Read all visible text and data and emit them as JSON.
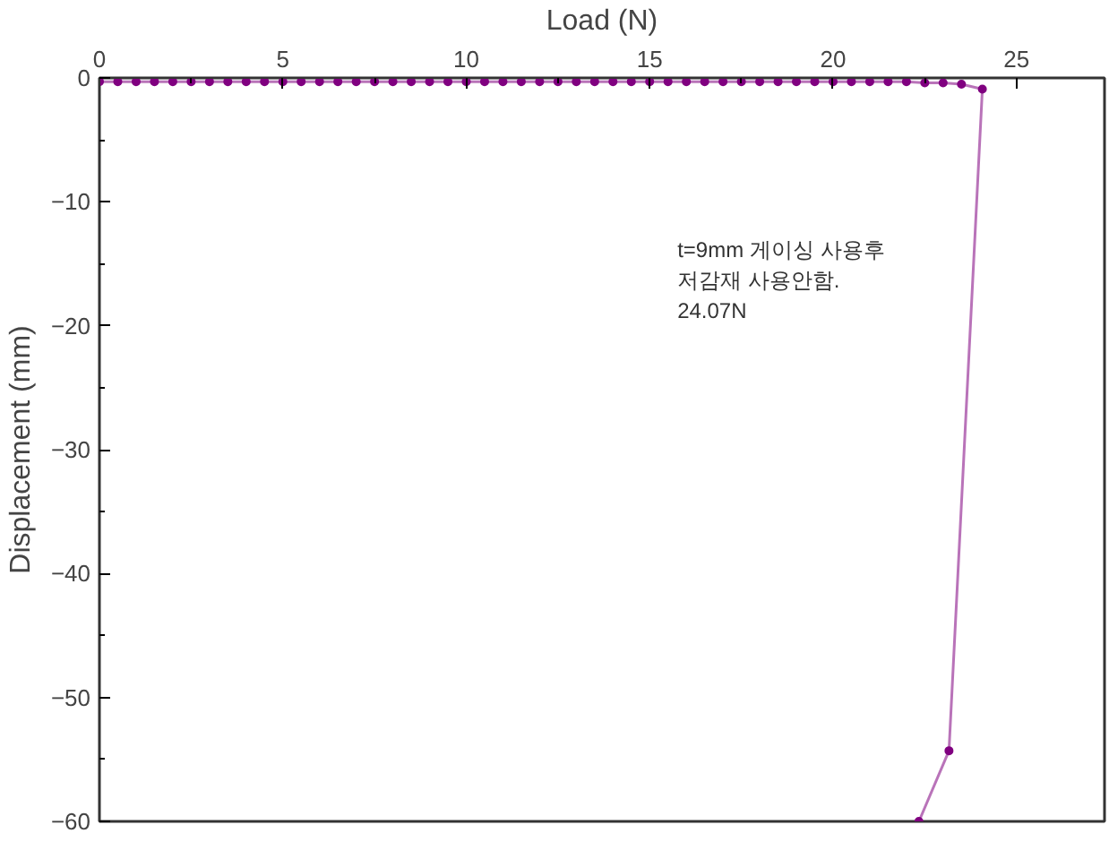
{
  "chart_data": {
    "type": "line",
    "xlabel": "Load (N)",
    "ylabel": "Displacement (mm)",
    "xlim": [
      0,
      27.4
    ],
    "ylim": [
      -60,
      0
    ],
    "xticks": [
      0,
      5,
      10,
      15,
      20,
      25
    ],
    "yticks": [
      0,
      -10,
      -20,
      -30,
      -40,
      -50,
      -60
    ],
    "grid": false,
    "marker": "circle",
    "line_style": "solid",
    "annotations": [
      "t=9mm 게이싱 사용후\n저감재 사용안함.\n24.07N"
    ],
    "series": [
      {
        "color": "#800080",
        "x": [
          0,
          0.5,
          1,
          1.5,
          2,
          2.5,
          3,
          3.5,
          4,
          4.5,
          5,
          5.5,
          6,
          6.5,
          7,
          7.5,
          8,
          8.5,
          9,
          9.5,
          10,
          10.5,
          11,
          11.5,
          12,
          12.5,
          13,
          13.5,
          14,
          14.5,
          15,
          15.5,
          16,
          16.5,
          17,
          17.5,
          18,
          18.5,
          19,
          19.5,
          20,
          20.5,
          21,
          21.5,
          22,
          22.5,
          23,
          23.5,
          24.07,
          23.16,
          22.34
        ],
        "values": [
          -0.3,
          -0.3,
          -0.3,
          -0.3,
          -0.3,
          -0.3,
          -0.3,
          -0.3,
          -0.3,
          -0.3,
          -0.3,
          -0.3,
          -0.3,
          -0.3,
          -0.3,
          -0.3,
          -0.3,
          -0.3,
          -0.3,
          -0.3,
          -0.3,
          -0.3,
          -0.3,
          -0.3,
          -0.3,
          -0.3,
          -0.3,
          -0.3,
          -0.3,
          -0.3,
          -0.3,
          -0.3,
          -0.3,
          -0.3,
          -0.3,
          -0.3,
          -0.3,
          -0.3,
          -0.3,
          -0.3,
          -0.3,
          -0.3,
          -0.3,
          -0.3,
          -0.3,
          -0.4,
          -0.4,
          -0.5,
          -0.9,
          -54.3,
          -60
        ]
      }
    ]
  }
}
